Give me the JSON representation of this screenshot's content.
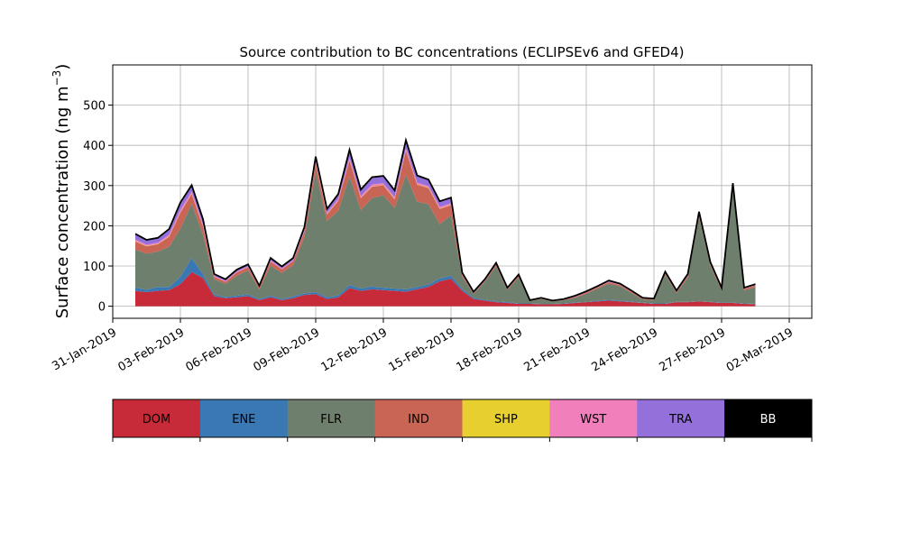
{
  "chart_data": {
    "type": "area",
    "stacked": true,
    "title": "Source contribution to BC concentrations (ECLIPSEv6 and GFED4)",
    "ylabel": "Surface concentration (ng m",
    "ylabel_exponent": "−3",
    "ylabel_close": ")",
    "xlabel": "",
    "x_unit": "date",
    "xlim": [
      "2019-01-31T00:00",
      "2019-03-03T00:00"
    ],
    "ylim": [
      -30,
      600
    ],
    "grid": true,
    "x_ticks": [
      {
        "date": "2019-01-31",
        "label": "31-Jan-2019"
      },
      {
        "date": "2019-02-03",
        "label": "03-Feb-2019"
      },
      {
        "date": "2019-02-06",
        "label": "06-Feb-2019"
      },
      {
        "date": "2019-02-09",
        "label": "09-Feb-2019"
      },
      {
        "date": "2019-02-12",
        "label": "12-Feb-2019"
      },
      {
        "date": "2019-02-15",
        "label": "15-Feb-2019"
      },
      {
        "date": "2019-02-18",
        "label": "18-Feb-2019"
      },
      {
        "date": "2019-02-21",
        "label": "21-Feb-2019"
      },
      {
        "date": "2019-02-24",
        "label": "24-Feb-2019"
      },
      {
        "date": "2019-02-27",
        "label": "27-Feb-2019"
      },
      {
        "date": "2019-03-02",
        "label": "02-Mar-2019"
      }
    ],
    "y_ticks": [
      0,
      100,
      200,
      300,
      400,
      500
    ],
    "x": [
      "2019-02-01T00:00",
      "2019-02-01T12:00",
      "2019-02-02T00:00",
      "2019-02-02T12:00",
      "2019-02-03T00:00",
      "2019-02-03T12:00",
      "2019-02-04T00:00",
      "2019-02-04T12:00",
      "2019-02-05T00:00",
      "2019-02-05T12:00",
      "2019-02-06T00:00",
      "2019-02-06T12:00",
      "2019-02-07T00:00",
      "2019-02-07T12:00",
      "2019-02-08T00:00",
      "2019-02-08T12:00",
      "2019-02-09T00:00",
      "2019-02-09T12:00",
      "2019-02-10T00:00",
      "2019-02-10T12:00",
      "2019-02-11T00:00",
      "2019-02-11T12:00",
      "2019-02-12T00:00",
      "2019-02-12T12:00",
      "2019-02-13T00:00",
      "2019-02-13T12:00",
      "2019-02-14T00:00",
      "2019-02-14T12:00",
      "2019-02-15T00:00",
      "2019-02-15T12:00",
      "2019-02-16T00:00",
      "2019-02-16T12:00",
      "2019-02-17T00:00",
      "2019-02-17T12:00",
      "2019-02-18T00:00",
      "2019-02-18T12:00",
      "2019-02-19T00:00",
      "2019-02-19T12:00",
      "2019-02-20T00:00",
      "2019-02-20T12:00",
      "2019-02-21T00:00",
      "2019-02-21T12:00",
      "2019-02-22T00:00",
      "2019-02-22T12:00",
      "2019-02-23T00:00",
      "2019-02-23T12:00",
      "2019-02-24T00:00",
      "2019-02-24T12:00",
      "2019-02-25T00:00",
      "2019-02-25T12:00",
      "2019-02-26T00:00",
      "2019-02-26T12:00",
      "2019-02-27T00:00",
      "2019-02-27T12:00",
      "2019-02-28T00:00",
      "2019-02-28T12:00"
    ],
    "series": [
      {
        "name": "DOM",
        "color": "#c72a38",
        "values": [
          38,
          35,
          38,
          40,
          55,
          85,
          70,
          25,
          20,
          22,
          25,
          15,
          22,
          15,
          20,
          28,
          30,
          18,
          22,
          45,
          38,
          42,
          40,
          38,
          36,
          42,
          48,
          62,
          68,
          38,
          18,
          14,
          10,
          8,
          6,
          6,
          5,
          5,
          6,
          8,
          10,
          12,
          14,
          12,
          10,
          8,
          6,
          6,
          10,
          10,
          12,
          10,
          8,
          8,
          6,
          5
        ]
      },
      {
        "name": "ENE",
        "color": "#3a78b3",
        "values": [
          8,
          6,
          10,
          8,
          18,
          35,
          10,
          4,
          3,
          4,
          4,
          3,
          4,
          3,
          4,
          4,
          5,
          4,
          5,
          8,
          6,
          7,
          6,
          6,
          6,
          6,
          6,
          7,
          8,
          5,
          3,
          2,
          2,
          2,
          1,
          1,
          1,
          1,
          1,
          1,
          1,
          2,
          2,
          2,
          1,
          1,
          1,
          1,
          1,
          1,
          1,
          1,
          1,
          1,
          1,
          1
        ]
      },
      {
        "name": "FLR",
        "color": "#6f7f6d",
        "values": [
          95,
          90,
          88,
          100,
          120,
          135,
          98,
          38,
          33,
          50,
          60,
          24,
          75,
          65,
          78,
          140,
          300,
          190,
          210,
          270,
          195,
          220,
          230,
          200,
          285,
          212,
          200,
          135,
          150,
          30,
          10,
          45,
          88,
          30,
          65,
          6,
          12,
          6,
          8,
          12,
          20,
          30,
          40,
          36,
          22,
          8,
          8,
          72,
          22,
          60,
          210,
          90,
          30,
          285,
          32,
          42
        ]
      },
      {
        "name": "IND",
        "color": "#c96555",
        "values": [
          20,
          18,
          18,
          25,
          40,
          24,
          20,
          6,
          5,
          8,
          8,
          5,
          10,
          9,
          10,
          14,
          20,
          16,
          25,
          40,
          30,
          28,
          25,
          22,
          60,
          42,
          40,
          38,
          25,
          5,
          2,
          3,
          5,
          3,
          4,
          1,
          2,
          1,
          2,
          2,
          3,
          3,
          4,
          3,
          3,
          2,
          2,
          4,
          3,
          5,
          6,
          5,
          4,
          6,
          4,
          4
        ]
      },
      {
        "name": "SHP",
        "color": "#e6cf2f",
        "values": [
          1,
          1,
          1,
          1,
          1,
          1,
          1,
          0,
          0,
          0,
          0,
          0,
          0,
          0,
          0,
          0,
          1,
          1,
          1,
          1,
          1,
          1,
          1,
          1,
          1,
          1,
          1,
          1,
          1,
          0,
          0,
          0,
          0,
          0,
          0,
          0,
          0,
          0,
          0,
          0,
          0,
          0,
          0,
          0,
          0,
          0,
          0,
          0,
          0,
          0,
          0,
          0,
          0,
          0,
          0,
          0
        ]
      },
      {
        "name": "WST",
        "color": "#f07fbc",
        "values": [
          4,
          3,
          3,
          4,
          6,
          5,
          4,
          2,
          2,
          2,
          2,
          1,
          3,
          2,
          2,
          3,
          4,
          3,
          4,
          5,
          4,
          5,
          4,
          4,
          5,
          4,
          4,
          4,
          4,
          1,
          1,
          1,
          1,
          1,
          1,
          0,
          0,
          0,
          0,
          1,
          1,
          1,
          1,
          1,
          1,
          1,
          1,
          1,
          1,
          1,
          2,
          1,
          1,
          2,
          1,
          1
        ]
      },
      {
        "name": "TRA",
        "color": "#9370da",
        "values": [
          14,
          12,
          12,
          14,
          18,
          16,
          14,
          5,
          4,
          5,
          5,
          3,
          6,
          5,
          6,
          8,
          12,
          10,
          12,
          20,
          16,
          18,
          18,
          17,
          20,
          18,
          16,
          14,
          14,
          4,
          2,
          2,
          2,
          2,
          2,
          1,
          1,
          1,
          1,
          2,
          2,
          2,
          3,
          2,
          2,
          1,
          1,
          2,
          2,
          3,
          4,
          3,
          2,
          4,
          2,
          2
        ]
      },
      {
        "name": "BB",
        "color": "#000000",
        "values": [
          0,
          0,
          0,
          0,
          0,
          0,
          0,
          0,
          0,
          0,
          0,
          0,
          0,
          0,
          0,
          0,
          0,
          0,
          0,
          0,
          0,
          0,
          0,
          0,
          0,
          0,
          0,
          0,
          0,
          0,
          0,
          0,
          0,
          0,
          0,
          0,
          0,
          0,
          0,
          0,
          0,
          0,
          0,
          0,
          0,
          0,
          0,
          0,
          0,
          0,
          0,
          0,
          0,
          0,
          0,
          0
        ]
      }
    ]
  }
}
